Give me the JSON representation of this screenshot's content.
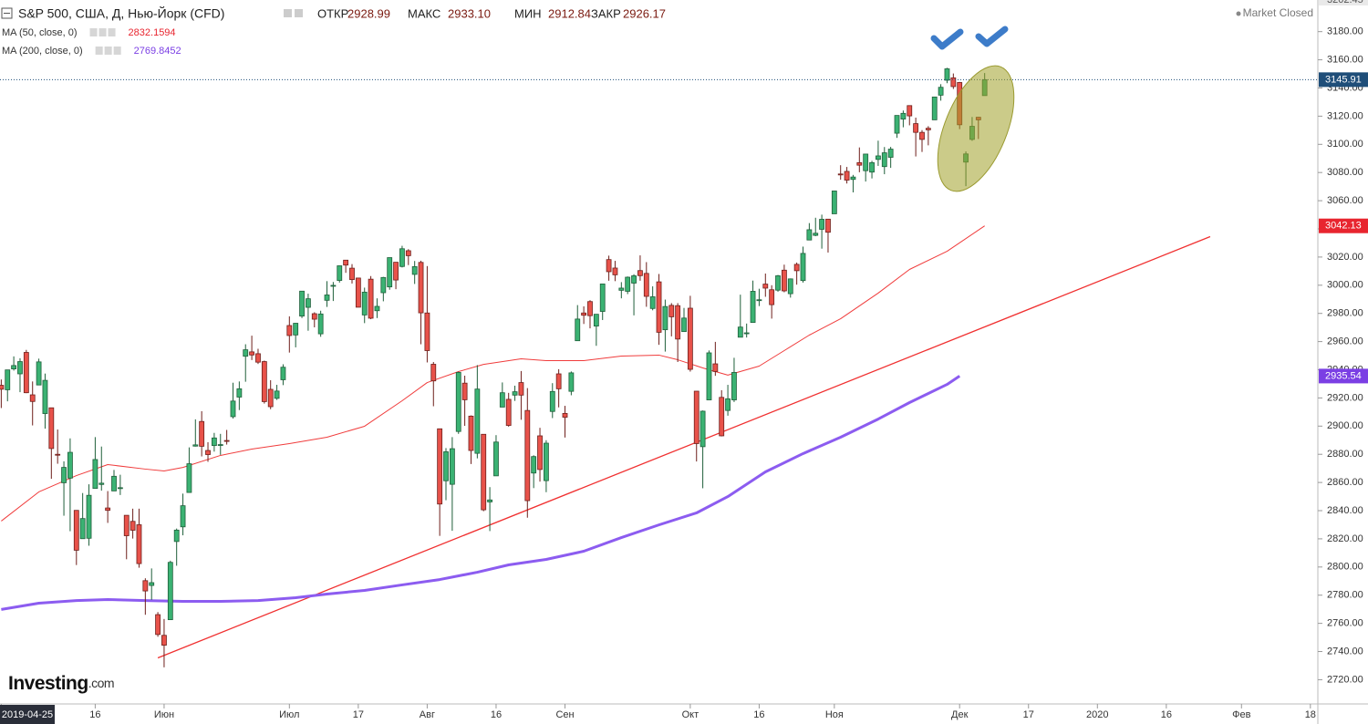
{
  "chart_data": {
    "type": "candlestick",
    "title": "S&P 500, США, Д, Нью-Йорк (CFD)",
    "status": "Market Closed",
    "logo_main": "Investing",
    "logo_suffix": ".com",
    "ohlc_legend": {
      "names": [
        "ОТКР",
        "МАКС",
        "МИН",
        "ЗАКР"
      ],
      "values": [
        2928.99,
        2933.1,
        2912.84,
        2926.17
      ],
      "value_labels": [
        "2928.99",
        "2933.10",
        "2912.84",
        "2926.17"
      ]
    },
    "up_color": "#3bb273",
    "up_border": "#1f5f3a",
    "down_color": "#e8524a",
    "down_border": "#6e1f1b",
    "last_price_color": "#1f4e79",
    "xlim": [
      -0.2,
      209.9
    ],
    "xticks": [
      {
        "value": 0,
        "label": "2019-04-25"
      },
      {
        "value": 15,
        "label": "16"
      },
      {
        "value": 26,
        "label": "Июн"
      },
      {
        "value": 46,
        "label": "Июл"
      },
      {
        "value": 57,
        "label": "17"
      },
      {
        "value": 68,
        "label": "Авг"
      },
      {
        "value": 79,
        "label": "16"
      },
      {
        "value": 90,
        "label": "Сен"
      },
      {
        "value": 110,
        "label": "Окт"
      },
      {
        "value": 121,
        "label": "16"
      },
      {
        "value": 133,
        "label": "Ноя"
      },
      {
        "value": 153,
        "label": "Дек"
      },
      {
        "value": 164,
        "label": "17"
      },
      {
        "value": 175,
        "label": "2020"
      },
      {
        "value": 186,
        "label": "16"
      },
      {
        "value": 198,
        "label": "Фев"
      },
      {
        "value": 209,
        "label": "18"
      }
    ],
    "ylim": [
      2704.1,
      3202.45
    ],
    "yticks": [
      {
        "value": 2720,
        "label": "2720.00"
      },
      {
        "value": 2740,
        "label": "2740.00"
      },
      {
        "value": 2760,
        "label": "2760.00"
      },
      {
        "value": 2780,
        "label": "2780.00"
      },
      {
        "value": 2800,
        "label": "2800.00"
      },
      {
        "value": 2820,
        "label": "2820.00"
      },
      {
        "value": 2840,
        "label": "2840.00"
      },
      {
        "value": 2860,
        "label": "2860.00"
      },
      {
        "value": 2880,
        "label": "2880.00"
      },
      {
        "value": 2900,
        "label": "2900.00"
      },
      {
        "value": 2920,
        "label": "2920.00"
      },
      {
        "value": 2940,
        "label": "2940.00"
      },
      {
        "value": 2960,
        "label": "2960.00"
      },
      {
        "value": 2980,
        "label": "2980.00"
      },
      {
        "value": 3000,
        "label": "3000.00"
      },
      {
        "value": 3020,
        "label": "3020.00"
      },
      {
        "value": 3040,
        "label": "3040.00"
      },
      {
        "value": 3060,
        "label": "3060.00"
      },
      {
        "value": 3080,
        "label": "3080.00"
      },
      {
        "value": 3100,
        "label": "3100.00"
      },
      {
        "value": 3120,
        "label": "3120.00"
      },
      {
        "value": 3140,
        "label": "3140.00"
      },
      {
        "value": 3160,
        "label": "3160.00"
      },
      {
        "value": 3180,
        "label": "3180.00"
      }
    ],
    "candles": [
      [
        2928.99,
        2933.1,
        2912.84,
        2926.17
      ],
      [
        2925.8,
        2939.9,
        2917.6,
        2939.9
      ],
      [
        2940.6,
        2949.5,
        2939.4,
        2943.0
      ],
      [
        2937.1,
        2948.2,
        2924.1,
        2945.8
      ],
      [
        2952.3,
        2954.1,
        2923.4,
        2923.7
      ],
      [
        2922.2,
        2931.7,
        2900.5,
        2917.5
      ],
      [
        2929.2,
        2947.9,
        2929.2,
        2945.6
      ],
      [
        2908.9,
        2937.3,
        2898.2,
        2932.5
      ],
      [
        2913.0,
        2913.0,
        2862.6,
        2884.1
      ],
      [
        2880.0,
        2897.6,
        2873.3,
        2879.4
      ],
      [
        2859.8,
        2875.0,
        2836.4,
        2870.7
      ],
      [
        2863.1,
        2891.3,
        2825.4,
        2881.4
      ],
      [
        2840.2,
        2840.2,
        2801.4,
        2811.9
      ],
      [
        2820.1,
        2852.5,
        2820.1,
        2834.4
      ],
      [
        2820.4,
        2858.7,
        2815.1,
        2850.9
      ],
      [
        2855.8,
        2892.2,
        2855.8,
        2876.3
      ],
      [
        2858.6,
        2885.5,
        2854.2,
        2859.5
      ],
      [
        2841.9,
        2853.9,
        2831.3,
        2840.2
      ],
      [
        2854.0,
        2868.9,
        2854.0,
        2864.4
      ],
      [
        2856.1,
        2865.5,
        2851.1,
        2856.3
      ],
      [
        2836.7,
        2836.7,
        2805.5,
        2822.2
      ],
      [
        2832.4,
        2841.4,
        2820.2,
        2826.1
      ],
      [
        2830.0,
        2841.4,
        2799.5,
        2802.4
      ],
      [
        2790.3,
        2792.0,
        2766.1,
        2783.0
      ],
      [
        2786.9,
        2799.0,
        2776.7,
        2788.9
      ],
      [
        2766.2,
        2768.0,
        2750.5,
        2752.1
      ],
      [
        2751.5,
        2763.1,
        2728.8,
        2744.5
      ],
      [
        2762.6,
        2804.5,
        2762.6,
        2803.3
      ],
      [
        2818.1,
        2827.3,
        2800.9,
        2826.2
      ],
      [
        2828.5,
        2852.1,
        2822.5,
        2843.5
      ],
      [
        2852.9,
        2884.9,
        2852.9,
        2873.3
      ],
      [
        2885.8,
        2904.8,
        2885.5,
        2886.7
      ],
      [
        2903.3,
        2910.6,
        2878.5,
        2885.7
      ],
      [
        2882.7,
        2888.6,
        2874.7,
        2879.8
      ],
      [
        2886.2,
        2895.2,
        2881.9,
        2891.6
      ],
      [
        2886.8,
        2894.5,
        2879.6,
        2886.9
      ],
      [
        2889.8,
        2897.3,
        2886.9,
        2889.7
      ],
      [
        2906.7,
        2930.8,
        2905.4,
        2917.8
      ],
      [
        2920.6,
        2931.7,
        2911.4,
        2926.5
      ],
      [
        2949.6,
        2958.1,
        2931.5,
        2954.2
      ],
      [
        2952.7,
        2964.2,
        2946.9,
        2950.5
      ],
      [
        2951.4,
        2954.9,
        2944.1,
        2945.4
      ],
      [
        2945.8,
        2946.5,
        2916.0,
        2917.4
      ],
      [
        2926.1,
        2932.6,
        2912.0,
        2913.8
      ],
      [
        2919.7,
        2929.3,
        2918.6,
        2924.9
      ],
      [
        2932.9,
        2943.9,
        2929.1,
        2941.8
      ],
      [
        2971.4,
        2977.9,
        2952.2,
        2964.3
      ],
      [
        2964.7,
        2973.2,
        2955.9,
        2973.0
      ],
      [
        2978.1,
        2995.8,
        2976.7,
        2995.8
      ],
      [
        2984.3,
        2994.0,
        2967.7,
        2990.4
      ],
      [
        2979.8,
        2980.8,
        2970.1,
        2975.9
      ],
      [
        2965.5,
        2981.9,
        2963.4,
        2979.6
      ],
      [
        2989.3,
        3002.9,
        2984.6,
        2993.1
      ],
      [
        2999.6,
        3002.3,
        2988.8,
        2999.9
      ],
      [
        3003.4,
        3013.9,
        3001.9,
        3013.8
      ],
      [
        3017.8,
        3017.8,
        3008.8,
        3014.3
      ],
      [
        3012.1,
        3015.0,
        3001.2,
        3004.0
      ],
      [
        3005.1,
        3005.3,
        2984.3,
        2984.4
      ],
      [
        2978.9,
        2998.3,
        2973.1,
        2995.1
      ],
      [
        3004.3,
        3006.5,
        2975.9,
        2976.6
      ],
      [
        2981.9,
        2990.7,
        2976.7,
        2985.0
      ],
      [
        2994.7,
        3005.9,
        2988.6,
        3005.5
      ],
      [
        2998.8,
        3019.6,
        2996.8,
        3019.6
      ],
      [
        3016.3,
        3016.3,
        2997.2,
        3003.7
      ],
      [
        3013.3,
        3027.98,
        3012.6,
        3025.9
      ],
      [
        3024.5,
        3025.6,
        3014.3,
        3020.97
      ],
      [
        3007.7,
        3017.2,
        3000.9,
        3013.2
      ],
      [
        3016.2,
        3017.4,
        2958.1,
        2980.4
      ],
      [
        2980.3,
        3013.6,
        2945.2,
        2953.6
      ],
      [
        2943.9,
        2945.5,
        2914.1,
        2932.1
      ],
      [
        2898.1,
        2898.1,
        2822.1,
        2844.7
      ],
      [
        2861.2,
        2884.4,
        2847.4,
        2881.8
      ],
      [
        2858.7,
        2892.2,
        2825.7,
        2883.98
      ],
      [
        2896.2,
        2938.7,
        2894.5,
        2938.1
      ],
      [
        2930.5,
        2935.8,
        2900.2,
        2918.7
      ],
      [
        2907.1,
        2907.6,
        2873.1,
        2882.7
      ],
      [
        2880.7,
        2943.3,
        2877.1,
        2926.3
      ],
      [
        2894.2,
        2894.2,
        2839.6,
        2840.6
      ],
      [
        2846.2,
        2856.7,
        2825.5,
        2847.6
      ],
      [
        2864.7,
        2893.6,
        2864.7,
        2888.7
      ],
      [
        2913.5,
        2931.0,
        2913.5,
        2923.7
      ],
      [
        2919.0,
        2923.6,
        2899.6,
        2900.5
      ],
      [
        2922.0,
        2928.7,
        2917.9,
        2924.4
      ],
      [
        2930.9,
        2939.1,
        2904.5,
        2922.0
      ],
      [
        2911.1,
        2927.0,
        2834.97,
        2847.1
      ],
      [
        2866.7,
        2879.3,
        2856.0,
        2878.4
      ],
      [
        2893.1,
        2898.8,
        2860.6,
        2869.2
      ],
      [
        2861.3,
        2890.0,
        2853.1,
        2887.9
      ],
      [
        2910.4,
        2930.5,
        2905.7,
        2924.6
      ],
      [
        2937.1,
        2940.4,
        2913.3,
        2926.5
      ],
      [
        2909.0,
        2914.4,
        2891.9,
        2906.3
      ],
      [
        2924.7,
        2938.8,
        2921.9,
        2937.8
      ],
      [
        2960.6,
        2985.9,
        2960.6,
        2976.0
      ],
      [
        2980.3,
        2985.0,
        2972.5,
        2978.7
      ],
      [
        2988.4,
        2989.4,
        2969.4,
        2978.4
      ],
      [
        2971.0,
        2979.4,
        2957.0,
        2979.4
      ],
      [
        2981.4,
        3000.9,
        2975.3,
        3000.9
      ],
      [
        3018.2,
        3021.0,
        3003.2,
        3009.6
      ],
      [
        3012.2,
        3017.3,
        3002.9,
        3007.4
      ],
      [
        2996.4,
        3002.2,
        2990.7,
        2997.96
      ],
      [
        2995.7,
        3006.2,
        2993.7,
        3005.7
      ],
      [
        3001.5,
        3007.8,
        2978.6,
        3006.7
      ],
      [
        3010.4,
        3021.2,
        3003.2,
        3006.8
      ],
      [
        3008.4,
        3016.4,
        2984.7,
        2992.1
      ],
      [
        2983.5,
        2999.2,
        2982.2,
        2991.8
      ],
      [
        3002.4,
        3007.98,
        2957.7,
        2966.6
      ],
      [
        2968.4,
        2989.8,
        2952.9,
        2984.9
      ],
      [
        2985.7,
        2987.3,
        2963.7,
        2977.6
      ],
      [
        2985.5,
        2987.3,
        2945.5,
        2961.8
      ],
      [
        2967.1,
        2983.9,
        2967.1,
        2976.7
      ],
      [
        2983.7,
        2992.5,
        2938.7,
        2940.3
      ],
      [
        2924.8,
        2924.8,
        2874.9,
        2887.6
      ],
      [
        2885.4,
        2911.1,
        2855.9,
        2910.6
      ],
      [
        2918.6,
        2953.7,
        2918.6,
        2952.0
      ],
      [
        2944.2,
        2959.8,
        2935.7,
        2938.8
      ],
      [
        2920.4,
        2925.5,
        2892.7,
        2893.1
      ],
      [
        2911.1,
        2929.3,
        2907.4,
        2919.4
      ],
      [
        2918.6,
        2948.5,
        2917.1,
        2938.1
      ],
      [
        2963.1,
        2993.3,
        2963.1,
        2970.3
      ],
      [
        2965.8,
        2972.8,
        2962.9,
        2966.2
      ],
      [
        2973.6,
        3003.3,
        2973.6,
        2995.7
      ],
      [
        2989.7,
        2997.5,
        2985.2,
        2989.7
      ],
      [
        3000.8,
        3008.3,
        2991.8,
        2997.95
      ],
      [
        2996.8,
        3000.0,
        2976.3,
        2986.2
      ],
      [
        2996.5,
        3007.3,
        2995.4,
        3006.7
      ],
      [
        3010.7,
        3014.6,
        2995.0,
        2995.99
      ],
      [
        2994.0,
        3004.8,
        2991.2,
        3004.5
      ],
      [
        3014.8,
        3016.1,
        3000.4,
        3010.3
      ],
      [
        3003.3,
        3027.4,
        3001.9,
        3022.6
      ],
      [
        3032.1,
        3044.1,
        3032.1,
        3039.4
      ],
      [
        3035.4,
        3047.9,
        3034.8,
        3036.9
      ],
      [
        3039.7,
        3050.1,
        3025.96,
        3046.8
      ],
      [
        3046.9,
        3046.9,
        3023.2,
        3037.6
      ],
      [
        3050.7,
        3066.95,
        3050.7,
        3066.9
      ],
      [
        3078.96,
        3085.2,
        3074.9,
        3078.3
      ],
      [
        3080.8,
        3083.95,
        3072.2,
        3074.6
      ],
      [
        3075.1,
        3078.3,
        3065.9,
        3076.8
      ],
      [
        3087.0,
        3097.8,
        3080.2,
        3085.2
      ],
      [
        3081.3,
        3093.1,
        3073.6,
        3093.1
      ],
      [
        3080.3,
        3088.3,
        3075.8,
        3087.0
      ],
      [
        3089.3,
        3102.6,
        3084.7,
        3091.8
      ],
      [
        3084.2,
        3098.1,
        3078.8,
        3094.0
      ],
      [
        3090.8,
        3098.2,
        3083.3,
        3096.6
      ],
      [
        3107.9,
        3120.5,
        3104.6,
        3120.5
      ],
      [
        3117.9,
        3124.0,
        3112.1,
        3122.0
      ],
      [
        3127.5,
        3127.6,
        3113.5,
        3120.2
      ],
      [
        3114.7,
        3118.97,
        3091.4,
        3108.5
      ],
      [
        3108.5,
        3110.1,
        3094.6,
        3103.5
      ],
      [
        3111.4,
        3112.9,
        3099.3,
        3110.3
      ],
      [
        3117.4,
        3133.8,
        3117.4,
        3133.6
      ],
      [
        3134.9,
        3142.7,
        3131.0,
        3140.5
      ],
      [
        3145.5,
        3154.3,
        3143.4,
        3153.6
      ],
      [
        3147.2,
        3150.3,
        3139.3,
        3141.0
      ],
      [
        3143.9,
        3144.3,
        3110.8,
        3113.9
      ],
      [
        3087.4,
        3094.97,
        3070.3,
        3093.2
      ],
      [
        3103.5,
        3119.4,
        3102.5,
        3112.8
      ],
      [
        3119.2,
        3119.4,
        3103.8,
        3117.4
      ],
      [
        3134.6,
        3150.6,
        3134.6,
        3145.91
      ]
    ],
    "overlays": [
      {
        "name": "MA (50, close, 0)",
        "color": "#f03c3c",
        "label_bg": "#e8252f",
        "legend_value": 2832.1594,
        "x": [
          0,
          6,
          12,
          17,
          23,
          26,
          29,
          35,
          40,
          46,
          52,
          58,
          64,
          68,
          73,
          77,
          83,
          87,
          93,
          99,
          105,
          108,
          112,
          116,
          121,
          125,
          129,
          134,
          140,
          145,
          151,
          157
        ],
        "values": [
          2832.6,
          2853.3,
          2864.9,
          2872.7,
          2869.5,
          2868.2,
          2870.7,
          2879.2,
          2883.7,
          2887.6,
          2892.1,
          2899.9,
          2918.0,
          2930.9,
          2938.7,
          2943.8,
          2947.8,
          2946.5,
          2946.5,
          2949.7,
          2950.4,
          2947.1,
          2941.3,
          2936.2,
          2942.6,
          2953.6,
          2964.6,
          2976.2,
          2994.4,
          3011.2,
          3024.1,
          3042.13
        ]
      },
      {
        "name": "MA (200, close, 0)",
        "color": "#8c5cf0",
        "label_bg": "#7b3fe4",
        "legend_value": 2769.8452,
        "x": [
          0,
          6,
          12,
          17,
          23,
          29,
          35,
          41,
          47,
          52,
          58,
          64,
          70,
          76,
          81,
          87,
          93,
          99,
          105,
          111,
          116,
          122,
          128,
          134,
          140,
          145,
          151,
          153
        ],
        "values": [
          2769.85,
          2774.3,
          2776.2,
          2776.9,
          2776.2,
          2775.6,
          2775.6,
          2776.2,
          2778.2,
          2780.8,
          2783.4,
          2787.3,
          2791.1,
          2796.3,
          2801.5,
          2805.4,
          2811.2,
          2820.9,
          2829.9,
          2838.4,
          2850.0,
          2867.5,
          2880.5,
          2892.1,
          2905.0,
          2916.7,
          2929.6,
          2935.54
        ]
      }
    ],
    "trendline": {
      "color": "#f03030",
      "x": [
        25,
        193
      ],
      "values": [
        2735.5,
        3034.5
      ]
    }
  }
}
